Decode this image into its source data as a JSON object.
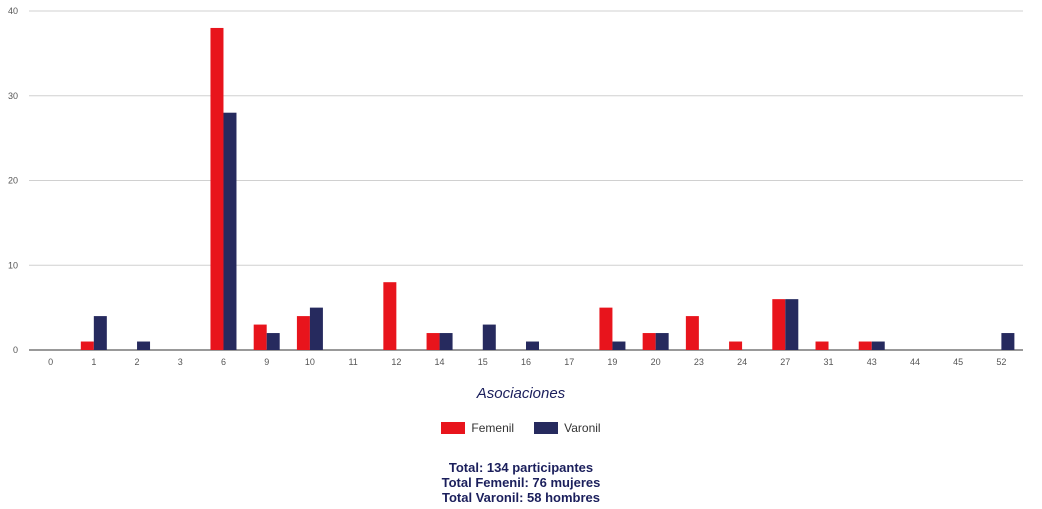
{
  "chart_data": {
    "type": "bar",
    "xlabel": "Asociaciones",
    "ylabel": "",
    "ylim": [
      0,
      40
    ],
    "y_ticks": [
      "0",
      "10",
      "20",
      "30",
      "40"
    ],
    "grid": true,
    "legend_position": "bottom",
    "categories": [
      "0",
      "1",
      "2",
      "3",
      "6",
      "9",
      "10",
      "11",
      "12",
      "14",
      "15",
      "16",
      "17",
      "19",
      "20",
      "23",
      "24",
      "27",
      "31",
      "43",
      "44",
      "45",
      "52"
    ],
    "series": [
      {
        "name": "Femenil",
        "color": "#e8141c",
        "values": [
          0,
          1,
          0,
          0,
          38,
          3,
          4,
          0,
          8,
          2,
          0,
          0,
          0,
          5,
          2,
          4,
          1,
          6,
          1,
          1,
          0,
          0,
          0
        ]
      },
      {
        "name": "Varonil",
        "color": "#262a5e",
        "values": [
          0,
          4,
          1,
          0,
          28,
          2,
          5,
          0,
          0,
          2,
          3,
          1,
          0,
          1,
          2,
          0,
          0,
          6,
          0,
          1,
          0,
          0,
          2
        ]
      }
    ]
  },
  "totals": {
    "line1": "Total: 134 participantes",
    "line2": "Total Femenil: 76 mujeres",
    "line3": "Total Varonil: 58 hombres"
  }
}
